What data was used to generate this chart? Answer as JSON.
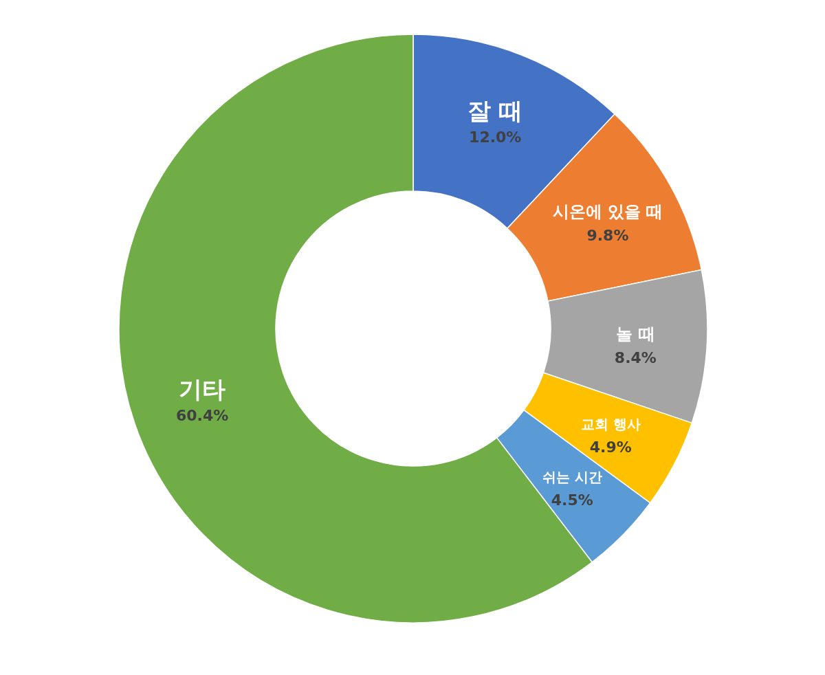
{
  "chart_data": {
    "type": "donut",
    "categories": [
      "잘 때",
      "시온에 있을 때",
      "놀 때",
      "교회 행사",
      "쉬는 시간",
      "기타"
    ],
    "values": [
      12.0,
      9.8,
      8.4,
      4.9,
      4.5,
      60.4
    ],
    "colors": [
      "#4472c4",
      "#ed7d31",
      "#a5a5a5",
      "#ffc000",
      "#5b9bd5",
      "#70ad47"
    ],
    "value_labels": [
      "12.0%",
      "9.8%",
      "8.4%",
      "4.9%",
      "4.5%",
      "60.4%"
    ],
    "legend": false
  }
}
